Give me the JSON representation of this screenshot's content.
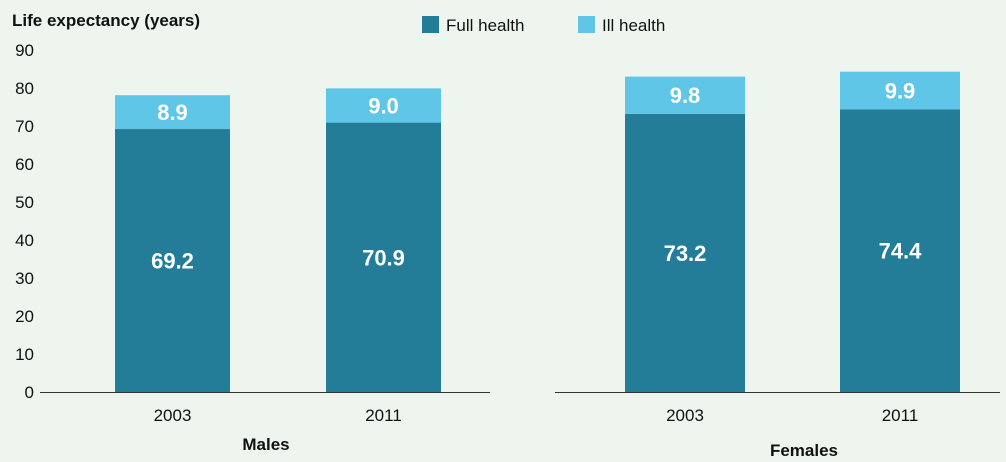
{
  "chart_data": {
    "type": "bar",
    "stacked": true,
    "ylabel": "Life expectancy (years)",
    "ylim": [
      0,
      90
    ],
    "yticks": [
      0,
      10,
      20,
      30,
      40,
      50,
      60,
      70,
      80,
      90
    ],
    "grid": false,
    "legend_position": "top-center",
    "series": [
      {
        "name": "Full health",
        "color": "#237d99"
      },
      {
        "name": "Ill health",
        "color": "#5fc6e8"
      }
    ],
    "groups": [
      {
        "label": "Males",
        "categories": [
          "2003",
          "2011"
        ],
        "values": {
          "Full health": [
            69.2,
            70.9
          ],
          "Ill health": [
            8.9,
            9.0
          ]
        },
        "value_labels": {
          "Full health": [
            "69.2",
            "70.9"
          ],
          "Ill health": [
            "8.9",
            "9.0"
          ]
        }
      },
      {
        "label": "Females",
        "categories": [
          "2003",
          "2011"
        ],
        "values": {
          "Full health": [
            73.2,
            74.4
          ],
          "Ill health": [
            9.8,
            9.9
          ]
        },
        "value_labels": {
          "Full health": [
            "73.2",
            "74.4"
          ],
          "Ill health": [
            "9.8",
            "9.9"
          ]
        }
      }
    ]
  }
}
